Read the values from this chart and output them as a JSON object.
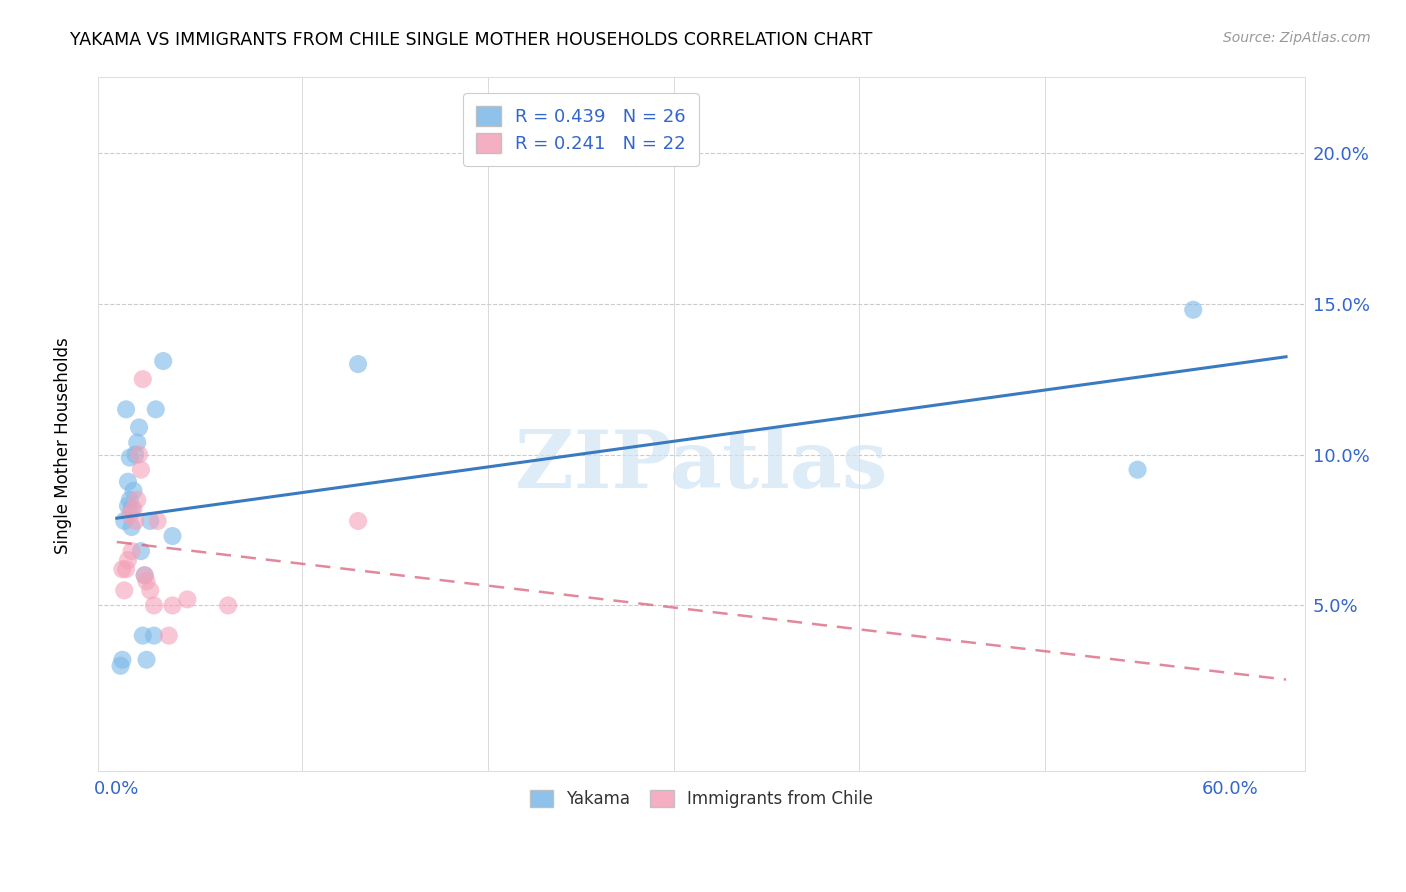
{
  "title": "YAKAMA VS IMMIGRANTS FROM CHILE SINGLE MOTHER HOUSEHOLDS CORRELATION CHART",
  "source": "Source: ZipAtlas.com",
  "ylabel": "Single Mother Households",
  "xlabel_ticks": [
    "0.0%",
    "",
    "",
    "",
    "",
    "",
    "60.0%"
  ],
  "xlabel_vals": [
    0.0,
    0.1,
    0.2,
    0.3,
    0.4,
    0.5,
    0.6
  ],
  "ylabel_ticks": [
    "5.0%",
    "10.0%",
    "15.0%",
    "20.0%"
  ],
  "ylabel_vals": [
    0.05,
    0.1,
    0.15,
    0.2
  ],
  "xlim": [
    -0.01,
    0.64
  ],
  "ylim": [
    -0.005,
    0.225
  ],
  "legend1_label": "R = 0.439   N = 26",
  "legend2_label": "R = 0.241   N = 22",
  "legend_bottom_label1": "Yakama",
  "legend_bottom_label2": "Immigrants from Chile",
  "yakama_color": "#7ab8e8",
  "chile_color": "#f4a0b8",
  "yakama_line_color": "#3a7bbf",
  "chile_line_color": "#d9607a",
  "watermark_color": "#d0e4f5",
  "watermark": "ZIPatlas",
  "tick_color": "#3366cc",
  "grid_color": "#cccccc",
  "background_color": "#ffffff",
  "yakama_x": [
    0.002,
    0.003,
    0.004,
    0.005,
    0.006,
    0.006,
    0.007,
    0.007,
    0.008,
    0.008,
    0.009,
    0.01,
    0.011,
    0.012,
    0.013,
    0.014,
    0.015,
    0.016,
    0.018,
    0.02,
    0.021,
    0.025,
    0.03,
    0.13,
    0.55,
    0.58
  ],
  "yakama_y": [
    0.03,
    0.032,
    0.078,
    0.115,
    0.083,
    0.091,
    0.085,
    0.099,
    0.082,
    0.076,
    0.088,
    0.1,
    0.104,
    0.109,
    0.068,
    0.04,
    0.06,
    0.032,
    0.078,
    0.04,
    0.115,
    0.131,
    0.073,
    0.13,
    0.095,
    0.148
  ],
  "chile_x": [
    0.003,
    0.004,
    0.005,
    0.006,
    0.007,
    0.008,
    0.009,
    0.01,
    0.011,
    0.012,
    0.013,
    0.014,
    0.015,
    0.016,
    0.018,
    0.02,
    0.022,
    0.028,
    0.03,
    0.038,
    0.06,
    0.13
  ],
  "chile_y": [
    0.062,
    0.055,
    0.062,
    0.065,
    0.08,
    0.068,
    0.082,
    0.078,
    0.085,
    0.1,
    0.095,
    0.125,
    0.06,
    0.058,
    0.055,
    0.05,
    0.078,
    0.04,
    0.05,
    0.052,
    0.05,
    0.078
  ],
  "yakama_line_x": [
    0.0,
    0.63
  ],
  "chile_line_x": [
    0.0,
    0.63
  ]
}
